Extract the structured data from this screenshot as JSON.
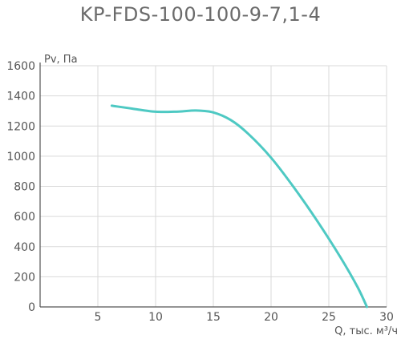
{
  "chart_data": {
    "type": "line",
    "title": "KP-FDS-100-100-9-7,1-4",
    "xlabel": "Q, тыс. м³/ч",
    "ylabel": "Pv, Па",
    "xlim": [
      0,
      30
    ],
    "ylim": [
      0,
      1600
    ],
    "x_ticks": [
      5,
      10,
      15,
      20,
      25,
      30
    ],
    "y_ticks": [
      0,
      200,
      400,
      600,
      800,
      1000,
      1200,
      1400,
      1600
    ],
    "grid": true,
    "line_color": "#4ec9c3",
    "series": [
      {
        "x": [
          6.2,
          8,
          10,
          12,
          13.5,
          15,
          16.5,
          18,
          20,
          22,
          24,
          26,
          27.5,
          28.3
        ],
        "y": [
          1335,
          1315,
          1295,
          1296,
          1303,
          1290,
          1240,
          1150,
          990,
          790,
          570,
          330,
          130,
          0
        ]
      }
    ]
  }
}
